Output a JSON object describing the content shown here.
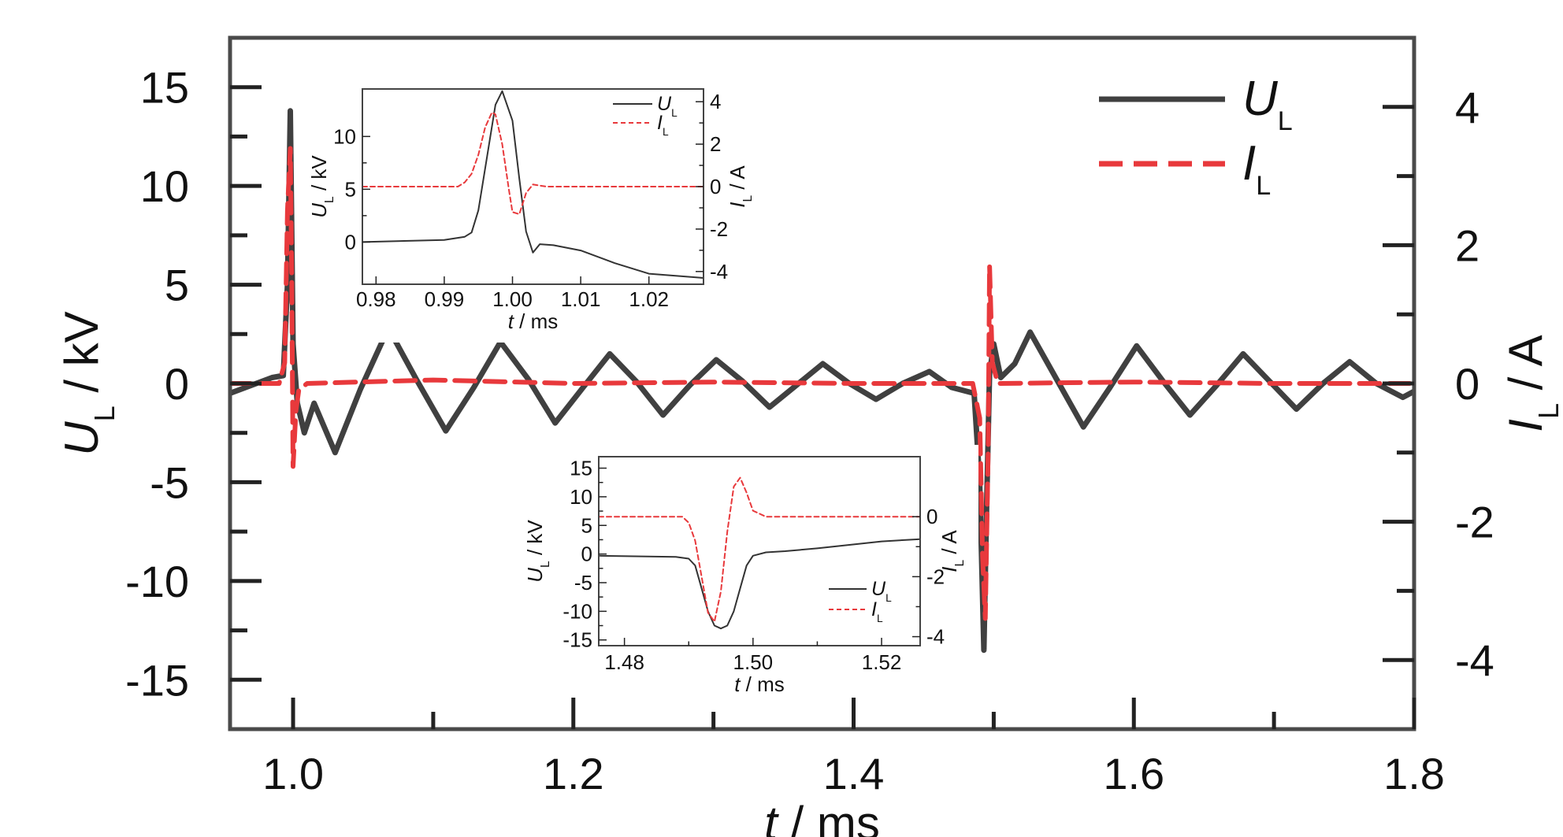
{
  "chart_data": [
    {
      "type": "line",
      "role": "main",
      "title": "",
      "xlabel": {
        "var": "t",
        "unit": " / ms"
      },
      "ylabel_left": {
        "var": "U",
        "sub": "L",
        "unit": " / kV"
      },
      "ylabel_right": {
        "var": "I",
        "sub": "L",
        "unit": " / A"
      },
      "xlim": [
        0.955,
        1.8
      ],
      "ylim_left": [
        -17.5,
        17.5
      ],
      "ylim_right": [
        -5,
        5
      ],
      "xticks": [
        1.0,
        1.2,
        1.4,
        1.6,
        1.8
      ],
      "xtick_labels": [
        "1.0",
        "1.2",
        "1.4",
        "1.6",
        "1.8"
      ],
      "yticks_left": [
        15,
        10,
        5,
        0,
        -5,
        -10,
        -15
      ],
      "yticks_left_labels": [
        "15",
        "10",
        "5",
        "0",
        "-5",
        "-10",
        "-15"
      ],
      "yticks_right": [
        4,
        2,
        0,
        -2,
        -4
      ],
      "yticks_right_labels": [
        "4",
        "2",
        "0",
        "-2",
        "-4"
      ],
      "legend_position": "top-right",
      "series": [
        {
          "name": {
            "var": "U",
            "sub": "L"
          },
          "axis": "left",
          "color": "#404040",
          "style": "solid",
          "x": [
            0.955,
            0.97,
            0.985,
            0.993,
            0.996,
            0.998,
            1.0,
            1.003,
            1.008,
            1.015,
            1.03,
            1.048,
            1.068,
            1.088,
            1.109,
            1.129,
            1.148,
            1.168,
            1.187,
            1.207,
            1.226,
            1.245,
            1.264,
            1.283,
            1.302,
            1.321,
            1.34,
            1.359,
            1.378,
            1.397,
            1.416,
            1.435,
            1.454,
            1.47,
            1.486,
            1.49,
            1.493,
            1.495,
            1.497,
            1.5,
            1.505,
            1.515,
            1.526,
            1.545,
            1.564,
            1.583,
            1.602,
            1.621,
            1.64,
            1.659,
            1.678,
            1.697,
            1.716,
            1.735,
            1.754,
            1.773,
            1.792,
            1.8
          ],
          "y": [
            -0.5,
            -0.1,
            0.3,
            0.4,
            5,
            13.8,
            2,
            -1,
            -2.5,
            -1,
            -3.5,
            -0.3,
            2.8,
            0.2,
            -2.4,
            -0.2,
            2.1,
            0.2,
            -2.0,
            -0.2,
            1.5,
            0.1,
            -1.6,
            -0.1,
            1.2,
            0.1,
            -1.2,
            -0.1,
            1.0,
            0.0,
            -0.8,
            0.0,
            0.6,
            -0.2,
            -0.5,
            -5,
            -13.5,
            -6,
            0.5,
            2.0,
            0.3,
            1.0,
            2.6,
            0.2,
            -2.2,
            -0.2,
            1.9,
            0.1,
            -1.6,
            -0.1,
            1.5,
            0.1,
            -1.3,
            0.0,
            1.1,
            0.0,
            -0.7,
            -0.4
          ]
        },
        {
          "name": {
            "var": "I",
            "sub": "L"
          },
          "axis": "right",
          "color": "#e8393c",
          "style": "dashed",
          "x": [
            0.955,
            0.99,
            0.994,
            0.996,
            0.998,
            0.999,
            1.0,
            1.002,
            1.004,
            1.01,
            1.1,
            1.2,
            1.3,
            1.4,
            1.485,
            1.49,
            1.492,
            1.494,
            1.496,
            1.497,
            1.499,
            1.503,
            1.6,
            1.7,
            1.8
          ],
          "y": [
            0.0,
            0.0,
            0.3,
            2.5,
            3.4,
            1.5,
            -1.2,
            -0.4,
            -0.1,
            0.0,
            0.05,
            0.0,
            0.02,
            0.0,
            0.0,
            -0.5,
            -2.5,
            -3.4,
            -1.0,
            1.7,
            0.3,
            0.0,
            0.02,
            0.0,
            0.0
          ]
        }
      ]
    },
    {
      "type": "line",
      "role": "inset-1",
      "xlabel": {
        "var": "t",
        "unit": " / ms"
      },
      "ylabel_left": {
        "var": "U",
        "sub": "L",
        "unit": " / kV"
      },
      "ylabel_right": {
        "var": "I",
        "sub": "L",
        "unit": " / A"
      },
      "xlim": [
        0.978,
        1.028
      ],
      "ylim_left": [
        -4,
        14.5
      ],
      "ylim_right": [
        -4.6,
        4.6
      ],
      "xticks": [
        0.98,
        0.99,
        1.0,
        1.01,
        1.02
      ],
      "xtick_labels": [
        "0.98",
        "0.99",
        "1.00",
        "1.01",
        "1.02"
      ],
      "yticks_left": [
        10,
        5,
        0
      ],
      "yticks_left_labels": [
        "10",
        "5",
        "0"
      ],
      "yticks_right": [
        4,
        2,
        0,
        -2,
        -4
      ],
      "yticks_right_labels": [
        "4",
        "2",
        "0",
        "-2",
        "-4"
      ],
      "legend_position": "top-right",
      "series": [
        {
          "name": {
            "var": "U",
            "sub": "L"
          },
          "axis": "left",
          "color": "#333333",
          "style": "solid",
          "x": [
            0.978,
            0.99,
            0.993,
            0.994,
            0.995,
            0.996,
            0.9975,
            0.9985,
            1.0,
            1.001,
            1.002,
            1.003,
            1.004,
            1.006,
            1.01,
            1.015,
            1.02,
            1.028
          ],
          "y": [
            0.0,
            0.2,
            0.5,
            0.9,
            3,
            7,
            13,
            14.3,
            11.5,
            6,
            1,
            -1,
            -0.2,
            -0.3,
            -0.8,
            -2,
            -3,
            -3.4
          ]
        },
        {
          "name": {
            "var": "I",
            "sub": "L"
          },
          "axis": "right",
          "color": "#e8393c",
          "style": "dashed",
          "x": [
            0.978,
            0.992,
            0.993,
            0.994,
            0.995,
            0.996,
            0.997,
            0.9975,
            0.9985,
            0.9995,
            1.0,
            1.001,
            1.002,
            1.003,
            1.005,
            1.028
          ],
          "y": [
            0.0,
            0.0,
            0.2,
            0.6,
            1.5,
            2.8,
            3.5,
            3.4,
            2.0,
            -0.2,
            -1.2,
            -1.3,
            -0.3,
            0.1,
            0.0,
            0.0
          ]
        }
      ]
    },
    {
      "type": "line",
      "role": "inset-2",
      "xlabel": {
        "var": "t",
        "unit": " / ms"
      },
      "ylabel_left": {
        "var": "U",
        "sub": "L",
        "unit": " / kV"
      },
      "ylabel_right": {
        "var": "I",
        "sub": "L",
        "unit": " / A"
      },
      "xlim": [
        1.476,
        1.526
      ],
      "ylim_left": [
        -16,
        17
      ],
      "ylim_right": [
        -4.3,
        2
      ],
      "xticks": [
        1.48,
        1.5,
        1.52
      ],
      "xtick_labels": [
        "1.48",
        "1.50",
        "1.52"
      ],
      "yticks_left": [
        15,
        10,
        5,
        0,
        -5,
        -10,
        -15
      ],
      "yticks_left_labels": [
        "15",
        "10",
        "5",
        "0",
        "-5",
        "-10",
        "-15"
      ],
      "yticks_right": [
        0,
        -2,
        -4
      ],
      "yticks_right_labels": [
        "0",
        "-2",
        "-4"
      ],
      "legend_position": "bottom-right",
      "series": [
        {
          "name": {
            "var": "U",
            "sub": "L"
          },
          "axis": "left",
          "color": "#333333",
          "style": "solid",
          "x": [
            1.476,
            1.488,
            1.49,
            1.491,
            1.492,
            1.493,
            1.494,
            1.495,
            1.496,
            1.497,
            1.498,
            1.499,
            1.5,
            1.502,
            1.505,
            1.51,
            1.515,
            1.52,
            1.526
          ],
          "y": [
            -0.3,
            -0.5,
            -0.8,
            -2,
            -6,
            -10,
            -12.5,
            -13,
            -12.5,
            -10,
            -6,
            -2,
            -0.3,
            0.3,
            0.5,
            1.0,
            1.6,
            2.2,
            2.6
          ]
        },
        {
          "name": {
            "var": "I",
            "sub": "L"
          },
          "axis": "right",
          "color": "#e8393c",
          "style": "dashed",
          "x": [
            1.476,
            1.489,
            1.49,
            1.491,
            1.492,
            1.493,
            1.494,
            1.495,
            1.496,
            1.497,
            1.498,
            1.499,
            1.5,
            1.502,
            1.526
          ],
          "y": [
            0.0,
            0.0,
            -0.2,
            -0.8,
            -2.0,
            -3.2,
            -3.5,
            -2.5,
            -0.5,
            1.0,
            1.3,
            0.8,
            0.2,
            0.0,
            0.0
          ]
        }
      ]
    }
  ]
}
